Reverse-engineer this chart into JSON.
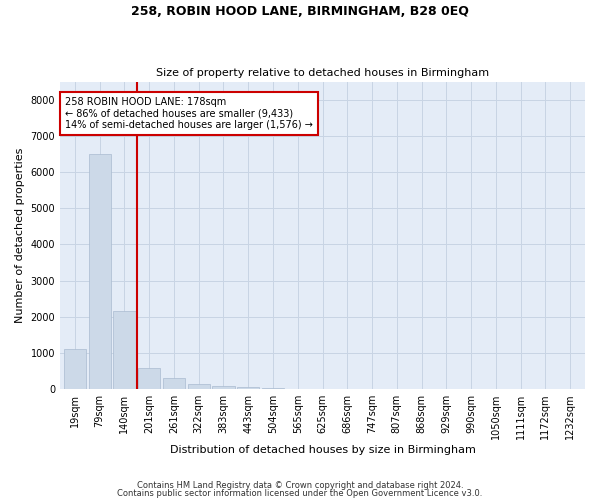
{
  "title_line1": "258, ROBIN HOOD LANE, BIRMINGHAM, B28 0EQ",
  "title_line2": "Size of property relative to detached houses in Birmingham",
  "xlabel": "Distribution of detached houses by size in Birmingham",
  "ylabel": "Number of detached properties",
  "categories": [
    "19sqm",
    "79sqm",
    "140sqm",
    "201sqm",
    "261sqm",
    "322sqm",
    "383sqm",
    "443sqm",
    "504sqm",
    "565sqm",
    "625sqm",
    "686sqm",
    "747sqm",
    "807sqm",
    "868sqm",
    "929sqm",
    "990sqm",
    "1050sqm",
    "1111sqm",
    "1172sqm",
    "1232sqm"
  ],
  "values": [
    1100,
    6500,
    2150,
    580,
    300,
    130,
    90,
    55,
    30,
    10,
    5,
    0,
    0,
    0,
    0,
    0,
    0,
    0,
    0,
    0,
    0
  ],
  "bar_color": "#ccd9e8",
  "bar_edgecolor": "#aabbd0",
  "vline_color": "#cc0000",
  "annotation_line1": "258 ROBIN HOOD LANE: 178sqm",
  "annotation_line2": "← 86% of detached houses are smaller (9,433)",
  "annotation_line3": "14% of semi-detached houses are larger (1,576) →",
  "annotation_box_facecolor": "#ffffff",
  "annotation_box_edgecolor": "#cc0000",
  "ylim": [
    0,
    8500
  ],
  "yticks": [
    0,
    1000,
    2000,
    3000,
    4000,
    5000,
    6000,
    7000,
    8000
  ],
  "grid_color": "#c8d4e4",
  "background_color": "#e4ecf7",
  "footnote1": "Contains HM Land Registry data © Crown copyright and database right 2024.",
  "footnote2": "Contains public sector information licensed under the Open Government Licence v3.0.",
  "title_fontsize": 9,
  "subtitle_fontsize": 8,
  "xlabel_fontsize": 8,
  "ylabel_fontsize": 8,
  "tick_fontsize": 7,
  "annotation_fontsize": 7,
  "footnote_fontsize": 6
}
